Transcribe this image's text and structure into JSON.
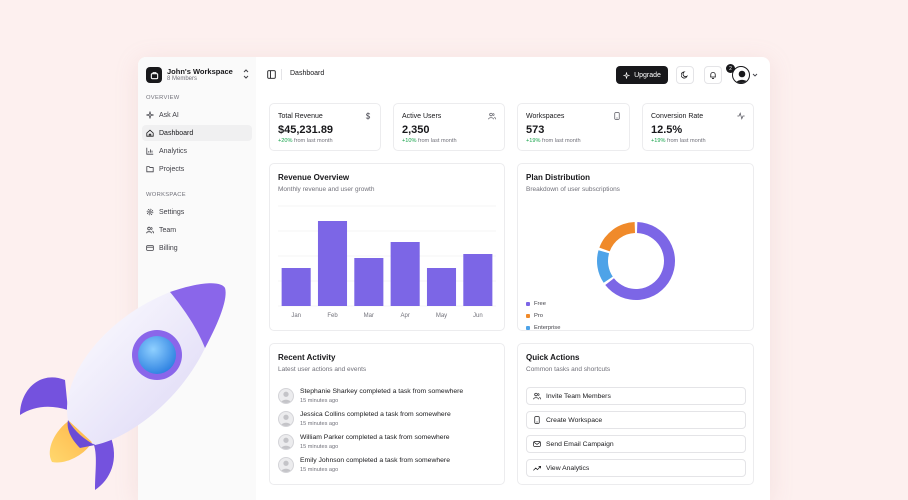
{
  "workspace": {
    "name": "John's Workspace",
    "members": "8 Members"
  },
  "sidebar": {
    "overview_label": "OVERVIEW",
    "overview_items": [
      {
        "label": "Ask AI",
        "icon": "sparkle-icon"
      },
      {
        "label": "Dashboard",
        "icon": "home-icon",
        "active": true
      },
      {
        "label": "Analytics",
        "icon": "chart-icon"
      },
      {
        "label": "Projects",
        "icon": "folder-icon"
      }
    ],
    "workspace_label": "WORKSPACE",
    "workspace_items": [
      {
        "label": "Settings",
        "icon": "gear-icon"
      },
      {
        "label": "Team",
        "icon": "users-icon"
      },
      {
        "label": "Billing",
        "icon": "credit-card-icon"
      }
    ]
  },
  "header": {
    "breadcrumb": "Dashboard",
    "upgrade_label": "Upgrade",
    "notification_count": "2"
  },
  "stats": [
    {
      "title": "Total Revenue",
      "value": "$45,231.89",
      "change": "+20%",
      "change_suffix": " from last month",
      "icon": "dollar-icon"
    },
    {
      "title": "Active Users",
      "value": "2,350",
      "change": "+10%",
      "change_suffix": " from last month",
      "icon": "users-icon"
    },
    {
      "title": "Workspaces",
      "value": "573",
      "change": "+19%",
      "change_suffix": " from last month",
      "icon": "device-icon"
    },
    {
      "title": "Conversion Rate",
      "value": "12.5%",
      "change": "+19%",
      "change_suffix": " from last month",
      "icon": "activity-icon"
    }
  ],
  "revenue": {
    "title": "Revenue Overview",
    "subtitle": "Monthly revenue and user growth"
  },
  "plan": {
    "title": "Plan Distribution",
    "subtitle": "Breakdown of user subscriptions"
  },
  "chart_data": [
    {
      "type": "bar",
      "title": "Revenue Overview",
      "categories": [
        "Jan",
        "Feb",
        "Mar",
        "Apr",
        "May",
        "Jun"
      ],
      "values": [
        38,
        85,
        48,
        64,
        38,
        52
      ],
      "ylim": [
        0,
        100
      ],
      "color": "#7c66e6",
      "grid": true
    },
    {
      "type": "pie",
      "title": "Plan Distribution",
      "categories": [
        "Free",
        "Pro",
        "Enterprise"
      ],
      "values": [
        65,
        20,
        15
      ],
      "colors": [
        "#7c66e6",
        "#f08a2a",
        "#4ea3e8"
      ],
      "donut": true,
      "legend": "bottom-left"
    }
  ],
  "activity": {
    "title": "Recent Activity",
    "subtitle": "Latest user actions and events",
    "items": [
      {
        "text": "Stephanie Sharkey completed a task from somewhere",
        "time": "15 minutes ago"
      },
      {
        "text": "Jessica Collins completed a task from somewhere",
        "time": "15 minutes ago"
      },
      {
        "text": "William Parker completed a task from somewhere",
        "time": "15 minutes ago"
      },
      {
        "text": "Emily Johnson completed a task from somewhere",
        "time": "15 minutes ago"
      }
    ]
  },
  "quick_actions": {
    "title": "Quick Actions",
    "subtitle": "Common tasks and shortcuts",
    "items": [
      {
        "label": "Invite Team Members",
        "icon": "users-icon"
      },
      {
        "label": "Create Workspace",
        "icon": "device-icon"
      },
      {
        "label": "Send Email Campaign",
        "icon": "mail-icon"
      },
      {
        "label": "View Analytics",
        "icon": "trend-icon"
      }
    ]
  }
}
